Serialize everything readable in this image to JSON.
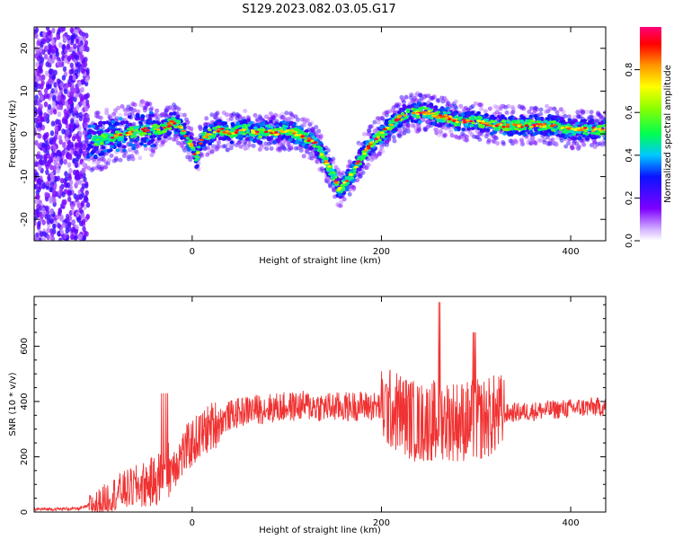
{
  "title": "S129.2023.082.03.05.G17",
  "chart_data": [
    {
      "type": "heatmap",
      "xlabel": "Height of straight line (km)",
      "ylabel": "Frequency (Hz)",
      "xlim": [
        -167,
        437
      ],
      "ylim": [
        -25,
        25
      ],
      "xticks": [
        0,
        200,
        400
      ],
      "yticks": [
        -20,
        -10,
        0,
        10,
        20
      ],
      "colorbar": {
        "label": "Normalized spectral amplitude",
        "range": [
          0,
          1
        ],
        "ticks": [
          0.0,
          0.2,
          0.4,
          0.6,
          0.8
        ]
      },
      "ridge": {
        "x": [
          -110,
          -90,
          -70,
          -50,
          -30,
          -20,
          -10,
          0,
          5,
          10,
          20,
          30,
          40,
          50,
          60,
          70,
          80,
          90,
          100,
          110,
          120,
          130,
          140,
          150,
          155,
          160,
          170,
          180,
          190,
          200,
          210,
          220,
          230,
          240,
          250,
          260,
          270,
          280,
          290,
          300,
          320,
          340,
          360,
          380,
          400,
          420,
          437
        ],
        "y": [
          -2,
          -1,
          0,
          1,
          1,
          3,
          1,
          -3,
          -6,
          -1,
          0,
          1,
          0,
          1,
          1,
          0,
          1,
          0,
          1,
          0,
          -1,
          -2,
          -6,
          -10,
          -13,
          -12,
          -9,
          -5,
          -2,
          0,
          2,
          4,
          5,
          5,
          5,
          4,
          4,
          3,
          3,
          3,
          2,
          2,
          2,
          2,
          1,
          1,
          1
        ]
      }
    },
    {
      "type": "line",
      "xlabel": "Height of straight line (km)",
      "ylabel": "SNR (10 * v/v)",
      "xlim": [
        -167,
        437
      ],
      "ylim": [
        0,
        780
      ],
      "xticks": [
        0,
        200,
        400
      ],
      "yticks": [
        0,
        200,
        400,
        600
      ],
      "color": "#f03232",
      "trend": {
        "x": [
          -167,
          -120,
          -100,
          -80,
          -60,
          -40,
          -20,
          0,
          20,
          40,
          60,
          80,
          100,
          120,
          140,
          160,
          180,
          200,
          220,
          240,
          260,
          280,
          300,
          320,
          340,
          360,
          380,
          400,
          420,
          437
        ],
        "y": [
          10,
          12,
          30,
          70,
          90,
          110,
          170,
          250,
          310,
          350,
          370,
          375,
          380,
          385,
          380,
          380,
          385,
          380,
          360,
          320,
          340,
          330,
          330,
          350,
          360,
          365,
          370,
          375,
          380,
          380
        ]
      }
    }
  ]
}
